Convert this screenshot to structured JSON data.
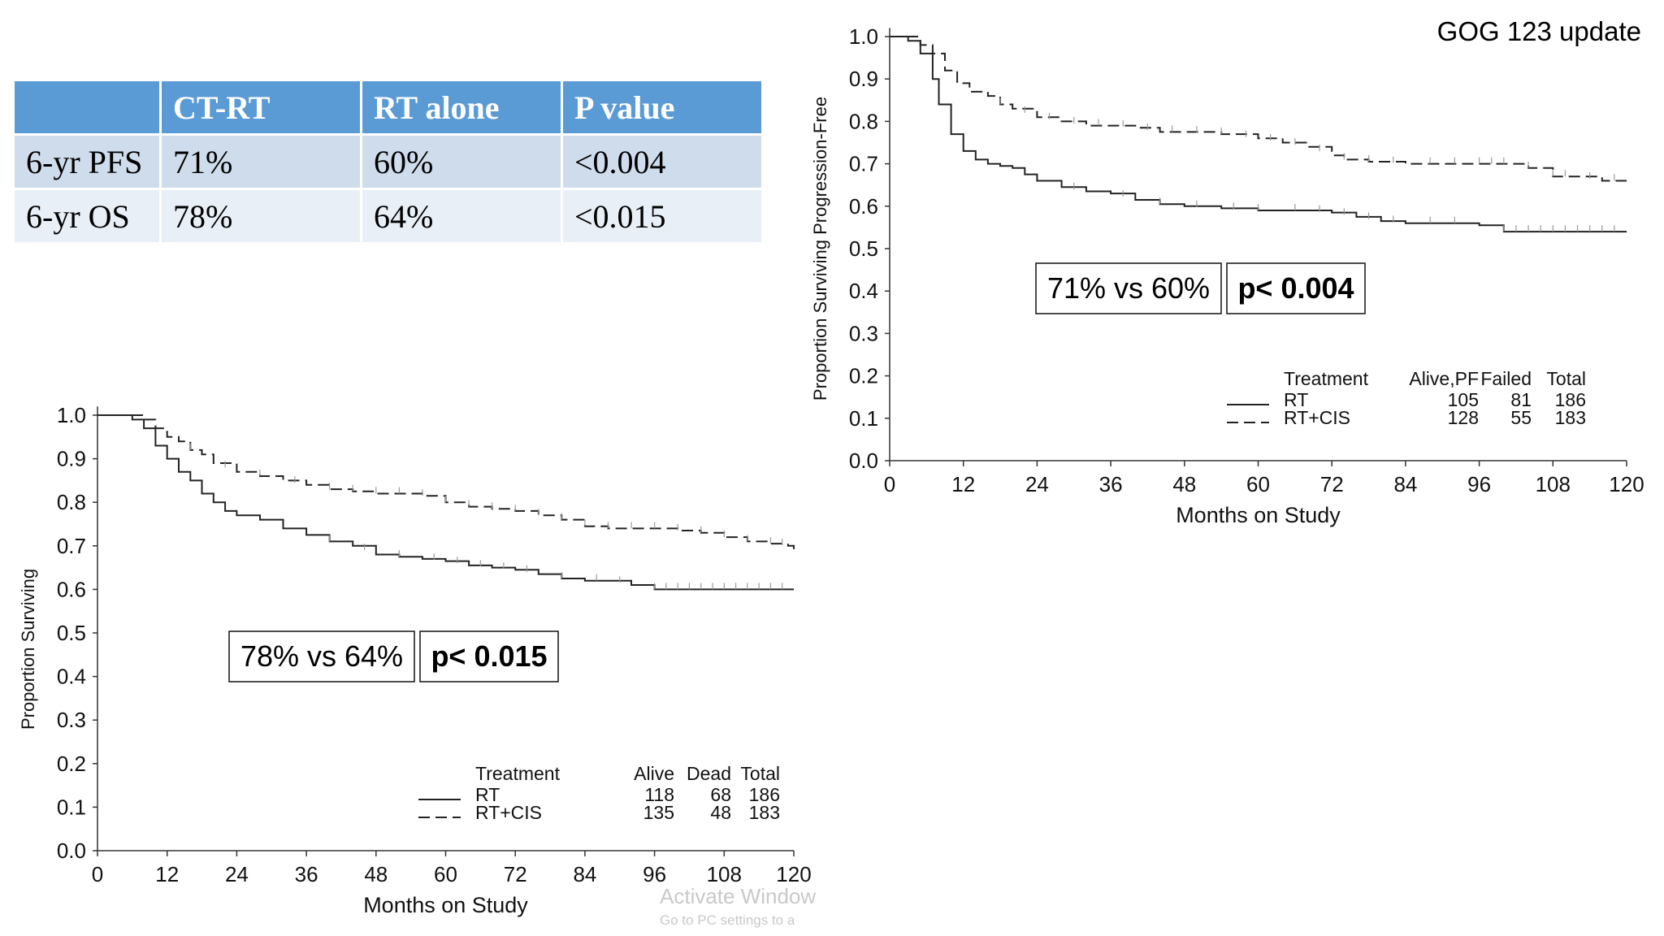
{
  "slide_title": "GOG 123 update",
  "table": {
    "headers": [
      "",
      "CT-RT",
      "RT alone",
      "P value"
    ],
    "rows": [
      [
        "6-yr PFS",
        "71%",
        "60%",
        "<0.004"
      ],
      [
        "6-yr OS",
        "78%",
        "64%",
        "<0.015"
      ]
    ]
  },
  "watermark": {
    "title": "Activate Window",
    "subtitle": "Go to PC settings to a"
  },
  "chart_data": [
    {
      "id": "pfs",
      "type": "line",
      "title": "",
      "xlabel": "Months on Study",
      "ylabel": "Proportion Surviving Progression-Free",
      "xlim": [
        0,
        120
      ],
      "ylim": [
        0,
        1
      ],
      "xticks": [
        "0",
        "12",
        "24",
        "36",
        "48",
        "60",
        "72",
        "84",
        "96",
        "108",
        "120"
      ],
      "yticks": [
        "0.0",
        "0.1",
        "0.2",
        "0.3",
        "0.4",
        "0.5",
        "0.6",
        "0.7",
        "0.8",
        "0.9",
        "1.0"
      ],
      "series": [
        {
          "name": "RT",
          "style": "solid",
          "x": [
            0,
            3,
            5,
            7,
            8,
            10,
            12,
            14,
            16,
            18,
            20,
            22,
            24,
            28,
            32,
            36,
            40,
            44,
            48,
            54,
            60,
            66,
            72,
            76,
            80,
            84,
            88,
            92,
            96,
            100,
            104,
            108,
            112,
            116,
            120
          ],
          "y": [
            1.0,
            0.99,
            0.96,
            0.9,
            0.84,
            0.77,
            0.73,
            0.71,
            0.7,
            0.695,
            0.69,
            0.675,
            0.66,
            0.645,
            0.635,
            0.63,
            0.615,
            0.605,
            0.6,
            0.595,
            0.59,
            0.59,
            0.585,
            0.575,
            0.565,
            0.56,
            0.56,
            0.56,
            0.555,
            0.54,
            0.54,
            0.54,
            0.54,
            0.54,
            0.54
          ],
          "censor_x": [
            30,
            38,
            44,
            50,
            56,
            60,
            66,
            70,
            74,
            78,
            82,
            88,
            92,
            100,
            102,
            104,
            106,
            108,
            110,
            112,
            114,
            116,
            118
          ]
        },
        {
          "name": "RT+CIS",
          "style": "dashed",
          "x": [
            0,
            3,
            5,
            7,
            9,
            11,
            13,
            16,
            18,
            20,
            24,
            28,
            32,
            36,
            40,
            44,
            48,
            54,
            60,
            64,
            68,
            72,
            74,
            78,
            84,
            88,
            92,
            96,
            100,
            104,
            108,
            112,
            116,
            120
          ],
          "y": [
            1.0,
            1.0,
            0.98,
            0.96,
            0.92,
            0.89,
            0.87,
            0.86,
            0.84,
            0.83,
            0.81,
            0.8,
            0.79,
            0.79,
            0.785,
            0.775,
            0.775,
            0.77,
            0.76,
            0.75,
            0.74,
            0.72,
            0.71,
            0.705,
            0.7,
            0.7,
            0.7,
            0.7,
            0.7,
            0.69,
            0.67,
            0.67,
            0.66,
            0.66
          ],
          "censor_x": [
            18,
            22,
            26,
            30,
            34,
            38,
            42,
            46,
            50,
            54,
            58,
            62,
            66,
            70,
            74,
            78,
            82,
            88,
            92,
            96,
            98,
            100,
            104,
            108,
            110,
            114,
            118
          ]
        }
      ],
      "legend": {
        "heading": "Treatment",
        "columns": [
          "Alive,PF",
          "Failed",
          "Total"
        ],
        "rows": [
          {
            "name": "RT",
            "values": [
              "105",
              "81",
              "186"
            ]
          },
          {
            "name": "RT+CIS",
            "values": [
              "128",
              "55",
              "183"
            ]
          }
        ]
      },
      "annotations": [
        "71% vs 60%",
        "p< 0.004"
      ]
    },
    {
      "id": "os",
      "type": "line",
      "title": "",
      "xlabel": "Months on Study",
      "ylabel": "Proportion Surviving",
      "xlim": [
        0,
        120
      ],
      "ylim": [
        0,
        1
      ],
      "xticks": [
        "0",
        "12",
        "24",
        "36",
        "48",
        "60",
        "72",
        "84",
        "96",
        "108",
        "120"
      ],
      "yticks": [
        "0.0",
        "0.1",
        "0.2",
        "0.3",
        "0.4",
        "0.5",
        "0.6",
        "0.7",
        "0.8",
        "0.9",
        "1.0"
      ],
      "series": [
        {
          "name": "RT",
          "style": "solid",
          "x": [
            0,
            4,
            6,
            8,
            10,
            12,
            14,
            16,
            18,
            20,
            22,
            24,
            28,
            32,
            36,
            40,
            44,
            48,
            52,
            56,
            60,
            64,
            68,
            72,
            76,
            80,
            84,
            88,
            92,
            96,
            100,
            104,
            108,
            112,
            116,
            120
          ],
          "y": [
            1.0,
            1.0,
            0.99,
            0.97,
            0.93,
            0.9,
            0.87,
            0.85,
            0.82,
            0.8,
            0.78,
            0.77,
            0.76,
            0.74,
            0.725,
            0.71,
            0.7,
            0.68,
            0.675,
            0.67,
            0.665,
            0.655,
            0.65,
            0.645,
            0.635,
            0.625,
            0.62,
            0.62,
            0.61,
            0.6,
            0.6,
            0.6,
            0.6,
            0.6,
            0.6,
            0.6
          ],
          "censor_x": [
            40,
            46,
            52,
            58,
            62,
            66,
            70,
            74,
            80,
            86,
            90,
            96,
            98,
            100,
            102,
            104,
            106,
            108,
            110,
            112,
            114,
            116,
            118
          ]
        },
        {
          "name": "RT+CIS",
          "style": "dashed",
          "x": [
            0,
            5,
            8,
            10,
            12,
            14,
            16,
            18,
            20,
            24,
            28,
            32,
            36,
            40,
            44,
            48,
            52,
            56,
            60,
            64,
            68,
            72,
            76,
            80,
            84,
            88,
            92,
            96,
            100,
            104,
            108,
            112,
            116,
            119,
            120
          ],
          "y": [
            1.0,
            1.0,
            0.99,
            0.97,
            0.95,
            0.94,
            0.92,
            0.91,
            0.89,
            0.87,
            0.86,
            0.85,
            0.84,
            0.83,
            0.825,
            0.82,
            0.82,
            0.815,
            0.8,
            0.79,
            0.785,
            0.78,
            0.77,
            0.76,
            0.745,
            0.74,
            0.74,
            0.74,
            0.735,
            0.73,
            0.72,
            0.71,
            0.705,
            0.7,
            0.69
          ],
          "censor_x": [
            16,
            22,
            28,
            34,
            40,
            44,
            48,
            52,
            56,
            60,
            64,
            68,
            72,
            76,
            80,
            84,
            88,
            92,
            96,
            100,
            104,
            108,
            112,
            116,
            118
          ]
        }
      ],
      "legend": {
        "heading": "Treatment",
        "columns": [
          "Alive",
          "Dead",
          "Total"
        ],
        "rows": [
          {
            "name": "RT",
            "values": [
              "118",
              "68",
              "186"
            ]
          },
          {
            "name": "RT+CIS",
            "values": [
              "135",
              "48",
              "183"
            ]
          }
        ]
      },
      "annotations": [
        "78% vs 64%",
        "p< 0.015"
      ]
    }
  ]
}
